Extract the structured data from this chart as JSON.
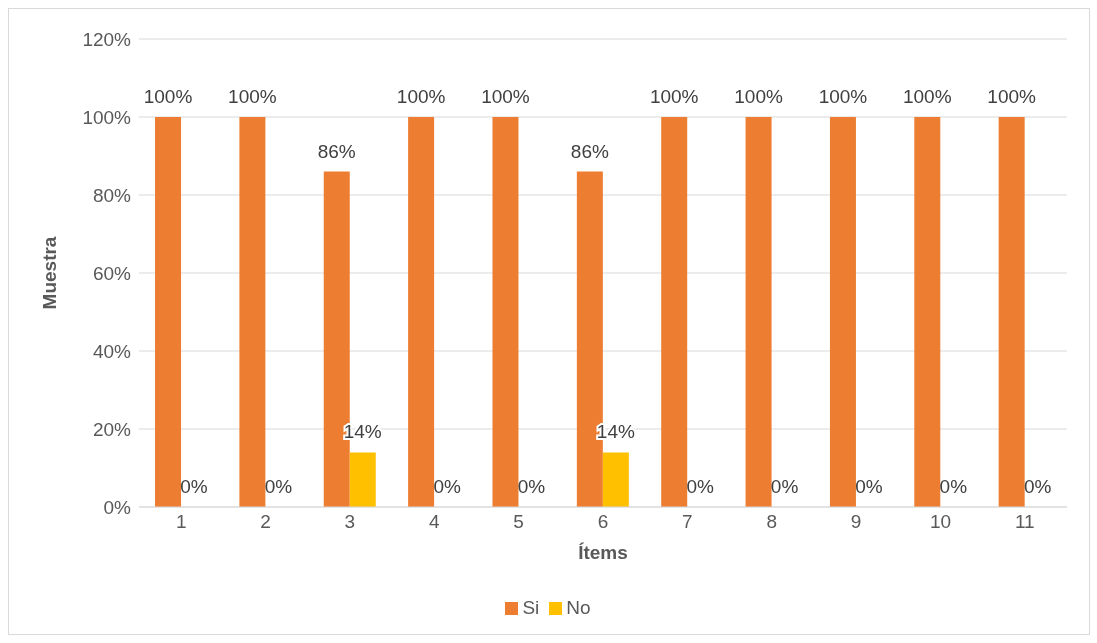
{
  "chart_data": {
    "type": "bar",
    "xlabel": "Ítems",
    "ylabel": "Muestra",
    "categories": [
      "1",
      "2",
      "3",
      "4",
      "5",
      "6",
      "7",
      "8",
      "9",
      "10",
      "11"
    ],
    "series": [
      {
        "name": "Si",
        "color": "#ed7d31",
        "values": [
          100,
          100,
          86,
          100,
          100,
          86,
          100,
          100,
          100,
          100,
          100
        ],
        "value_labels": [
          "100%",
          "100%",
          "86%",
          "100%",
          "100%",
          "86%",
          "100%",
          "100%",
          "100%",
          "100%",
          "100%"
        ]
      },
      {
        "name": "No",
        "color": "#ffc000",
        "values": [
          0,
          0,
          14,
          0,
          0,
          14,
          0,
          0,
          0,
          0,
          0
        ],
        "value_labels": [
          "0%",
          "0%",
          "14%",
          "0%",
          "0%",
          "14%",
          "0%",
          "0%",
          "0%",
          "0%",
          "0%"
        ]
      }
    ],
    "ylim": [
      0,
      120
    ],
    "yticks": [
      {
        "value": 0,
        "label": "0%"
      },
      {
        "value": 20,
        "label": "20%"
      },
      {
        "value": 40,
        "label": "40%"
      },
      {
        "value": 60,
        "label": "60%"
      },
      {
        "value": 80,
        "label": "80%"
      },
      {
        "value": 100,
        "label": "100%"
      },
      {
        "value": 120,
        "label": "120%"
      }
    ],
    "grid": "y",
    "legend": "bottom"
  }
}
